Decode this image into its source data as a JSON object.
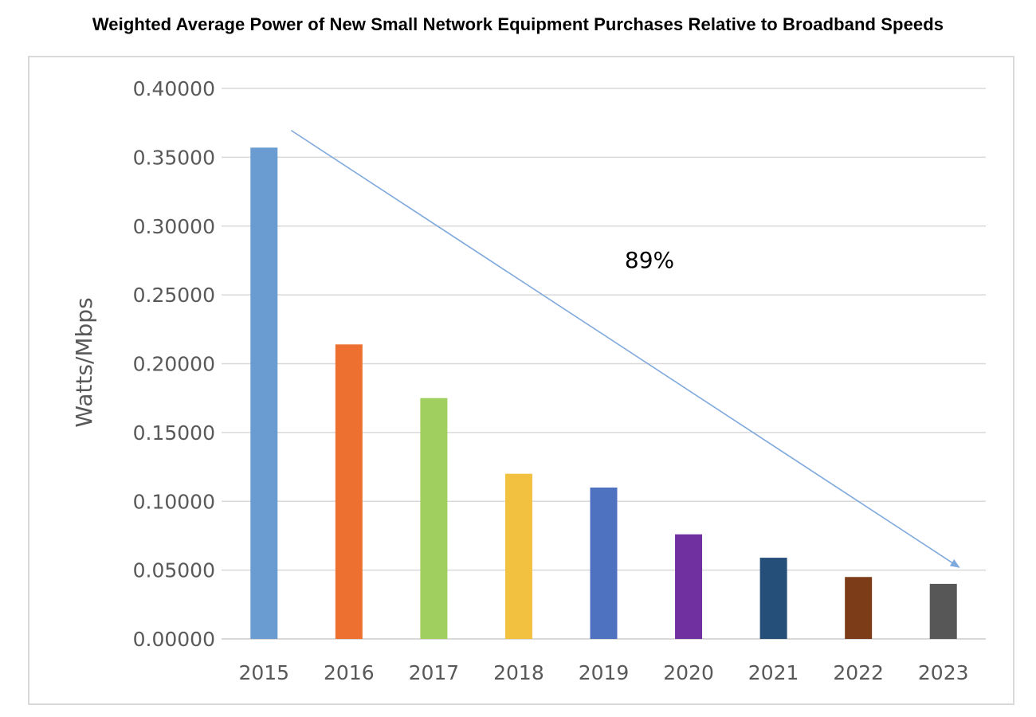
{
  "chart_data": {
    "type": "bar",
    "title": "Weighted Average Power of New Small Network Equipment Purchases Relative to Broadband Speeds",
    "xlabel": "",
    "ylabel": "Watts/Mbps",
    "categories": [
      "2015",
      "2016",
      "2017",
      "2018",
      "2019",
      "2020",
      "2021",
      "2022",
      "2023"
    ],
    "values": [
      0.357,
      0.214,
      0.175,
      0.12,
      0.11,
      0.076,
      0.059,
      0.045,
      0.04
    ],
    "colors": [
      "#6a9bd1",
      "#ed7030",
      "#a1cf5f",
      "#f2c140",
      "#4e72c0",
      "#7030a0",
      "#254e79",
      "#7b3c17",
      "#575757"
    ],
    "ylim": [
      0,
      0.4
    ],
    "yticks": [
      "0.00000",
      "0.05000",
      "0.10000",
      "0.15000",
      "0.20000",
      "0.25000",
      "0.30000",
      "0.35000",
      "0.40000"
    ],
    "ytick_values": [
      0,
      0.05,
      0.1,
      0.15,
      0.2,
      0.25,
      0.3,
      0.35,
      0.4
    ],
    "grid": true,
    "annotation": {
      "text": "89%",
      "arrow_start": {
        "category": "2015",
        "value": 0.373
      },
      "arrow_end": {
        "category": "2023",
        "value": 0.052
      },
      "arrow_color": "#7fa9dd"
    },
    "grid_color": "#d9d9d9",
    "text_color": "#595959"
  }
}
